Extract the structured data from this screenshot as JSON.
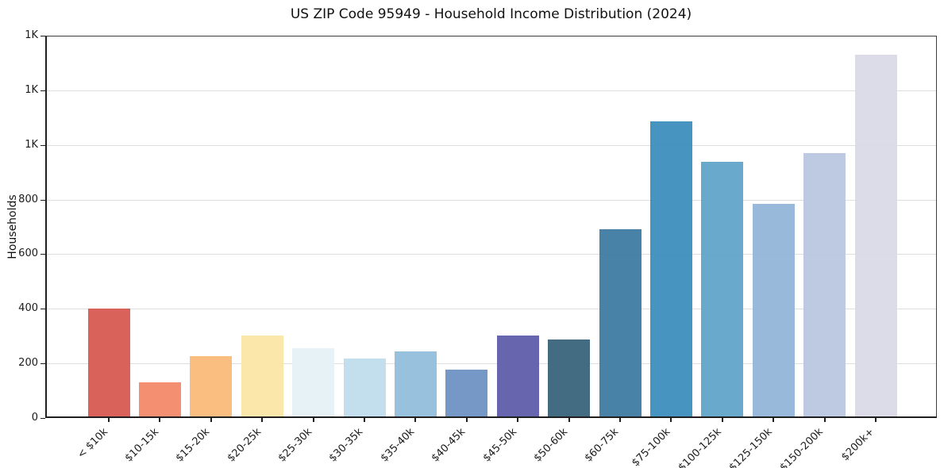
{
  "chart_data": {
    "type": "bar",
    "title": "US ZIP Code 95949 - Household Income Distribution (2024)",
    "xlabel": "",
    "ylabel": "Households",
    "categories": [
      "< $10k",
      "$10-15k",
      "$15-20k",
      "$20-25k",
      "$25-30k",
      "$30-35k",
      "$35-40k",
      "$40-45k",
      "$45-50k",
      "$50-60k",
      "$60-75k",
      "$75-100k",
      "$100-125k",
      "$125-150k",
      "$150-200k",
      "$200k+"
    ],
    "values": [
      400,
      130,
      226,
      301,
      257,
      219,
      245,
      176,
      303,
      288,
      692,
      1087,
      938,
      784,
      971,
      1331
    ],
    "bar_colors": [
      "#d6574f",
      "#f48767",
      "#fbb977",
      "#fce5a5",
      "#e4f1f5",
      "#bedded",
      "#8fbcda",
      "#6b90c3",
      "#5b59a7",
      "#35617a",
      "#3a78a0",
      "#398cbb",
      "#5ea4c8",
      "#90b4d6",
      "#b9c5e0",
      "#d8d9e6"
    ],
    "ylim": [
      0,
      1400
    ],
    "yticks": {
      "values": [
        0,
        200,
        400,
        600,
        800,
        1000,
        1200,
        1400
      ],
      "labels": [
        "0",
        "200",
        "400",
        "600",
        "800",
        "1K",
        "1K",
        "1K"
      ]
    },
    "grid": "horizontal",
    "grid_color": "#dedede",
    "axis_color": "#1f1f1f",
    "legend": "none"
  }
}
